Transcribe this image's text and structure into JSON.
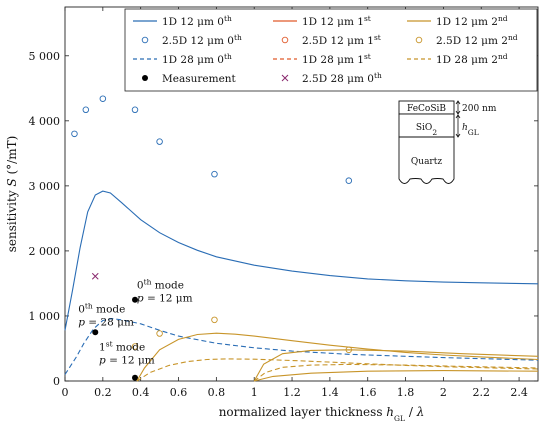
{
  "chart_data": {
    "type": "line",
    "xlabel": "normalized layer thickness h_GL / λ",
    "ylabel": "sensitivity S (°/mT)",
    "xlim": [
      0,
      2.5
    ],
    "ylim": [
      0,
      5750
    ],
    "xticks": [
      "0",
      "0.2",
      "0.4",
      "0.6",
      "0.8",
      "1",
      "1.2",
      "1.4",
      "1.6",
      "1.8",
      "2",
      "2.2",
      "2.4"
    ],
    "yticks": [
      "0",
      "1 000",
      "2 000",
      "3 000",
      "4 000",
      "5 000"
    ],
    "grid": false,
    "legend_position": "top",
    "colors": {
      "order0": "#2a6db5",
      "order1": "#e05a2b",
      "order2": "#c8952a",
      "measurement": "#000000",
      "cross": "#8a2a6e"
    },
    "series": [
      {
        "name": "1D 12 μm 0th",
        "style": "solid",
        "color": "#2a6db5",
        "points": [
          [
            0,
            780
          ],
          [
            0.04,
            1400
          ],
          [
            0.08,
            2050
          ],
          [
            0.12,
            2600
          ],
          [
            0.16,
            2860
          ],
          [
            0.2,
            2920
          ],
          [
            0.24,
            2890
          ],
          [
            0.3,
            2740
          ],
          [
            0.4,
            2480
          ],
          [
            0.5,
            2280
          ],
          [
            0.6,
            2130
          ],
          [
            0.7,
            2010
          ],
          [
            0.8,
            1910
          ],
          [
            1.0,
            1780
          ],
          [
            1.2,
            1690
          ],
          [
            1.4,
            1620
          ],
          [
            1.6,
            1570
          ],
          [
            1.8,
            1540
          ],
          [
            2.0,
            1520
          ],
          [
            2.2,
            1510
          ],
          [
            2.5,
            1495
          ]
        ]
      },
      {
        "name": "2.5D 12 μm 0th",
        "style": "circles",
        "color": "#2a6db5",
        "points": [
          [
            0.05,
            3800
          ],
          [
            0.11,
            4170
          ],
          [
            0.2,
            4340
          ],
          [
            0.37,
            4170
          ],
          [
            0.5,
            3680
          ],
          [
            0.79,
            3180
          ],
          [
            1.5,
            3080
          ]
        ]
      },
      {
        "name": "1D 28 μm 0th",
        "style": "dashed",
        "color": "#2a6db5",
        "points": [
          [
            0,
            100
          ],
          [
            0.06,
            370
          ],
          [
            0.1,
            580
          ],
          [
            0.15,
            800
          ],
          [
            0.2,
            930
          ],
          [
            0.25,
            960
          ],
          [
            0.3,
            940
          ],
          [
            0.4,
            880
          ],
          [
            0.5,
            780
          ],
          [
            0.6,
            690
          ],
          [
            0.8,
            580
          ],
          [
            1.0,
            510
          ],
          [
            1.2,
            460
          ],
          [
            1.5,
            410
          ],
          [
            1.8,
            380
          ],
          [
            2.0,
            360
          ],
          [
            2.5,
            320
          ]
        ]
      },
      {
        "name": "Measurement",
        "style": "filled-dots",
        "color": "#000000",
        "points": [
          [
            0.16,
            750
          ],
          [
            0.37,
            1250
          ],
          [
            0.37,
            50
          ]
        ]
      },
      {
        "name": "1D 12 μm 1st",
        "style": "solid",
        "color": "#e05a2b",
        "points": []
      },
      {
        "name": "2.5D 12 μm 1st",
        "style": "circles",
        "color": "#e05a2b",
        "points": []
      },
      {
        "name": "1D 28 μm 1st",
        "style": "dashed",
        "color": "#e05a2b",
        "points": []
      },
      {
        "name": "2.5D 28 μm 0th",
        "style": "cross",
        "color": "#8a2a6e",
        "points": [
          [
            0.16,
            1610
          ]
        ]
      },
      {
        "name": "1D 12 μm 2nd",
        "style": "solid",
        "color": "#c8952a",
        "points": [
          [
            0.38,
            0
          ],
          [
            0.42,
            200
          ],
          [
            0.5,
            480
          ],
          [
            0.6,
            640
          ],
          [
            0.7,
            715
          ],
          [
            0.8,
            735
          ],
          [
            0.9,
            720
          ],
          [
            1.0,
            690
          ],
          [
            1.2,
            620
          ],
          [
            1.4,
            550
          ],
          [
            1.6,
            490
          ],
          [
            1.8,
            440
          ],
          [
            2.0,
            400
          ],
          [
            2.2,
            370
          ],
          [
            2.5,
            330
          ]
        ]
      },
      {
        "name": "2.5D 12 μm 2nd",
        "style": "circles",
        "color": "#c8952a",
        "points": [
          [
            0.37,
            530
          ],
          [
            0.5,
            730
          ],
          [
            0.79,
            940
          ],
          [
            1.5,
            480
          ]
        ]
      },
      {
        "name": "1D 28 μm 2nd",
        "style": "dashed",
        "color": "#c8952a",
        "points": [
          [
            0.38,
            0
          ],
          [
            0.45,
            130
          ],
          [
            0.55,
            240
          ],
          [
            0.65,
            300
          ],
          [
            0.75,
            330
          ],
          [
            0.85,
            340
          ],
          [
            1.0,
            335
          ],
          [
            1.2,
            315
          ],
          [
            1.4,
            290
          ],
          [
            1.6,
            265
          ],
          [
            1.8,
            240
          ],
          [
            2.0,
            220
          ],
          [
            2.5,
            185
          ]
        ]
      },
      {
        "name": "1D 12 μm 2nd (upper band)",
        "style": "solid",
        "color": "#c8952a",
        "points": [
          [
            1.0,
            0
          ],
          [
            1.05,
            260
          ],
          [
            1.15,
            420
          ],
          [
            1.3,
            470
          ],
          [
            1.5,
            480
          ],
          [
            1.8,
            460
          ],
          [
            2.1,
            420
          ],
          [
            2.5,
            380
          ]
        ]
      },
      {
        "name": "1D 28 μm 2nd (upper band)",
        "style": "dashed",
        "color": "#c8952a",
        "points": [
          [
            1.0,
            0
          ],
          [
            1.06,
            130
          ],
          [
            1.15,
            210
          ],
          [
            1.3,
            245
          ],
          [
            1.5,
            255
          ],
          [
            1.8,
            245
          ],
          [
            2.1,
            225
          ],
          [
            2.5,
            200
          ]
        ]
      },
      {
        "name": "1D 12 μm 2nd (lower band)",
        "style": "solid",
        "color": "#c8952a",
        "points": [
          [
            1.0,
            0
          ],
          [
            1.1,
            70
          ],
          [
            1.3,
            120
          ],
          [
            1.6,
            150
          ],
          [
            2.0,
            160
          ],
          [
            2.5,
            150
          ]
        ]
      }
    ],
    "legend": [
      {
        "label": "1D 12 μm 0th",
        "style": "line",
        "color": "#2a6db5"
      },
      {
        "label": "1D 12 μm 1st",
        "style": "line",
        "color": "#e05a2b"
      },
      {
        "label": "1D 12 μm 2nd",
        "style": "line",
        "color": "#c8952a"
      },
      {
        "label": "2.5D 12 μm 0th",
        "style": "circle",
        "color": "#2a6db5"
      },
      {
        "label": "2.5D 12 μm 1st",
        "style": "circle",
        "color": "#e05a2b"
      },
      {
        "label": "2.5D 12 μm 2nd",
        "style": "circle",
        "color": "#c8952a"
      },
      {
        "label": "1D 28 μm 0th",
        "style": "dashed",
        "color": "#2a6db5"
      },
      {
        "label": "1D 28 μm 1st",
        "style": "dashed",
        "color": "#e05a2b"
      },
      {
        "label": "1D 28 μm 2nd",
        "style": "dashed",
        "color": "#c8952a"
      },
      {
        "label": "Measurement",
        "style": "dot",
        "color": "#000000"
      },
      {
        "label": "2.5D 28 μm 0th",
        "style": "cross",
        "color": "#8a2a6e"
      }
    ],
    "annotations": [
      {
        "line1": "0th mode",
        "line2": "p = 12 μm",
        "x": 0.38,
        "y": 1420
      },
      {
        "line1": "0th mode",
        "line2": "p = 28 μm",
        "x": 0.07,
        "y": 1050
      },
      {
        "line1": "1st mode",
        "line2": "p = 12 μm",
        "x": 0.18,
        "y": 470
      }
    ],
    "inset": {
      "layer1": "FeCoSiB",
      "layer2": "SiO2",
      "layer3": "Quartz",
      "thickness1": "200 nm",
      "thickness2": "h_GL"
    }
  }
}
